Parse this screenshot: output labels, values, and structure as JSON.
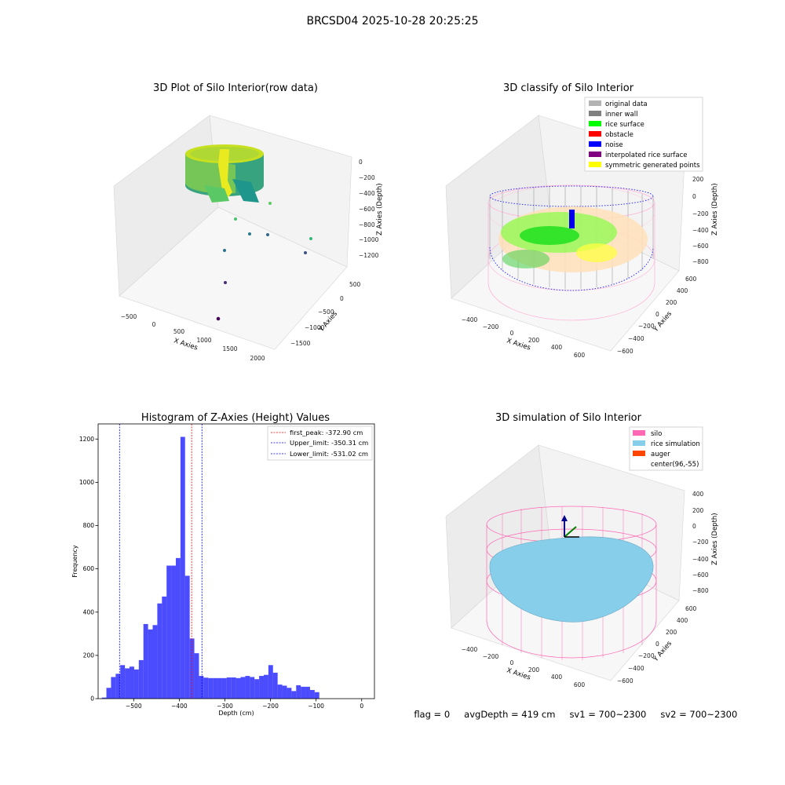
{
  "figure": {
    "suptitle": "BRCSD04 2025-10-28 20:25:25",
    "footer": {
      "flag": "flag = 0",
      "avg_depth": "avgDepth = 419 cm",
      "sv1": "sv1 = 700~2300",
      "sv2": "sv2 = 700~2300"
    }
  },
  "chart_data": [
    {
      "type": "scatter3d",
      "title": "3D Plot of Silo Interior(row data)",
      "xlabel": "X Axies",
      "ylabel": "Y Axies",
      "zlabel": "Z Axies (Depth)",
      "x_ticks": [
        "−500",
        "0",
        "500",
        "1000",
        "1500",
        "2000"
      ],
      "y_ticks": [
        "500",
        "0",
        "−500",
        "−1000",
        "−1500"
      ],
      "z_ticks": [
        "0",
        "−200",
        "−400",
        "−600",
        "−800",
        "−1000",
        "−1200"
      ],
      "grid": true,
      "colormap": "viridis"
    },
    {
      "type": "scatter3d",
      "title": "3D classify of Silo Interior",
      "xlabel": "X Axies",
      "ylabel": "Y Axies",
      "zlabel": "Z Axies (Depth)",
      "x_ticks": [
        "−400",
        "−200",
        "0",
        "200",
        "400",
        "600"
      ],
      "y_ticks": [
        "600",
        "400",
        "200",
        "0",
        "−200",
        "−400",
        "−600"
      ],
      "z_ticks": [
        "200",
        "0",
        "−200",
        "−400",
        "−600",
        "−800"
      ],
      "grid": true,
      "legend_position": "top-right",
      "legend": [
        {
          "label": "original data",
          "color": "#b3b3b3"
        },
        {
          "label": "inner wall",
          "color": "#808080"
        },
        {
          "label": "rice surface",
          "color": "#00ff00"
        },
        {
          "label": "obstacle",
          "color": "#ff0000"
        },
        {
          "label": "noise",
          "color": "#0000ff"
        },
        {
          "label": "interpolated rice surface",
          "color": "#800080"
        },
        {
          "label": "symmetric generated points",
          "color": "#ffff00"
        }
      ]
    },
    {
      "type": "bar",
      "title": "Histogram of Z-Axies (Height) Values",
      "xlabel": "Depth (cm)",
      "ylabel": "Frequency",
      "xlim": [
        -578,
        28
      ],
      "ylim": [
        0,
        1270
      ],
      "x_ticks": [
        -500,
        -400,
        -300,
        -200,
        -100,
        0
      ],
      "x_tick_labels": [
        "−500",
        "−400",
        "−300",
        "−200",
        "−100",
        "0"
      ],
      "y_ticks": [
        0,
        200,
        400,
        600,
        800,
        1000,
        1200
      ],
      "y_tick_labels": [
        "0",
        "200",
        "400",
        "600",
        "800",
        "1000",
        "1200"
      ],
      "bar_color": "#0000ff",
      "bin_start": -570,
      "bin_width": 10.15,
      "values": [
        5,
        50,
        100,
        115,
        155,
        140,
        148,
        135,
        178,
        345,
        320,
        340,
        440,
        472,
        615,
        615,
        650,
        1210,
        568,
        278,
        210,
        105,
        97,
        95,
        95,
        95,
        95,
        98,
        98,
        95,
        100,
        105,
        100,
        90,
        105,
        110,
        155,
        120,
        65,
        60,
        50,
        35,
        62,
        55,
        55,
        40,
        30
      ],
      "legend_position": "top-right",
      "vlines": [
        {
          "label": "first_peak: -372.90 cm",
          "x": -372.9,
          "color": "#ff0000"
        },
        {
          "label": "Upper_limit: -350.31 cm",
          "x": -350.31,
          "color": "#0000ff"
        },
        {
          "label": "Lower_limit: -531.02 cm",
          "x": -531.02,
          "color": "#0000ff"
        }
      ]
    },
    {
      "type": "surface3d",
      "title": "3D simulation of Silo Interior",
      "xlabel": "X Axies",
      "ylabel": "Y Axies",
      "zlabel": "Z Axies (Depth)",
      "x_ticks": [
        "−400",
        "−200",
        "0",
        "200",
        "400",
        "600"
      ],
      "y_ticks": [
        "600",
        "400",
        "200",
        "0",
        "−200",
        "−400",
        "−600"
      ],
      "z_ticks": [
        "400",
        "200",
        "0",
        "−200",
        "−400",
        "−600",
        "−800"
      ],
      "grid": true,
      "legend_position": "top-right",
      "legend": [
        {
          "label": "silo",
          "color": "#ff69b4"
        },
        {
          "label": "rice simulation",
          "color": "#87ceeb"
        },
        {
          "label": "auger",
          "color": "#ff4500"
        },
        {
          "label": "center(96,-55)",
          "color": "#ffffff"
        }
      ]
    }
  ]
}
